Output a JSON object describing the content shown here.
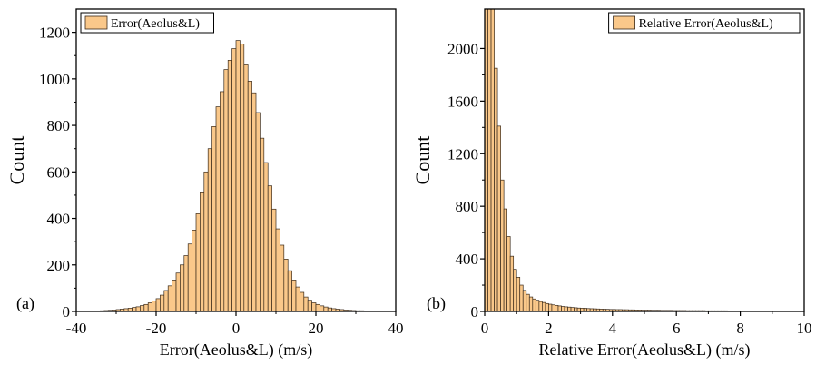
{
  "bar_fill": "#FAC88A",
  "bar_stroke": "#3a2a1a",
  "chart_data": [
    {
      "type": "bar",
      "panel_tag": "(a)",
      "xlabel": "Error(Aeolus&L) (m/s)",
      "ylabel": "Count",
      "xlim": [
        -40,
        40
      ],
      "ylim": [
        0,
        1300
      ],
      "xticks": [
        -40,
        -20,
        0,
        20,
        40
      ],
      "yticks": [
        0,
        200,
        400,
        600,
        800,
        1000,
        1200
      ],
      "grid": false,
      "legend": {
        "label": "Error(Aeolus&L)",
        "placement": "top-left"
      },
      "bin_width": 1,
      "series": [
        {
          "name": "Error(Aeolus&L)",
          "bin_starts": [
            -35,
            -34,
            -33,
            -32,
            -31,
            -30,
            -29,
            -28,
            -27,
            -26,
            -25,
            -24,
            -23,
            -22,
            -21,
            -20,
            -19,
            -18,
            -17,
            -16,
            -15,
            -14,
            -13,
            -12,
            -11,
            -10,
            -9,
            -8,
            -7,
            -6,
            -5,
            -4,
            -3,
            -2,
            -1,
            0,
            1,
            2,
            3,
            4,
            5,
            6,
            7,
            8,
            9,
            10,
            11,
            12,
            13,
            14,
            15,
            16,
            17,
            18,
            19,
            20,
            21,
            22,
            23,
            24,
            25,
            26,
            27,
            28,
            29,
            30,
            31,
            32,
            33,
            34,
            35
          ],
          "values": [
            2,
            3,
            4,
            5,
            6,
            8,
            10,
            12,
            14,
            17,
            20,
            25,
            30,
            37,
            45,
            55,
            70,
            90,
            110,
            135,
            165,
            200,
            240,
            290,
            350,
            420,
            510,
            600,
            700,
            795,
            880,
            945,
            1040,
            1080,
            1130,
            1165,
            1150,
            1060,
            990,
            940,
            855,
            745,
            640,
            540,
            440,
            355,
            285,
            225,
            175,
            135,
            105,
            82,
            62,
            48,
            37,
            30,
            24,
            19,
            15,
            12,
            10,
            8,
            6,
            5,
            4,
            3,
            3,
            2,
            2,
            1,
            1
          ]
        }
      ]
    },
    {
      "type": "bar",
      "panel_tag": "(b)",
      "xlabel": "Relative Error(Aeolus&L) (m/s)",
      "ylabel": "Count",
      "xlim": [
        0,
        10
      ],
      "ylim": [
        0,
        2300
      ],
      "xticks": [
        0,
        2,
        4,
        6,
        8,
        10
      ],
      "yticks": [
        0,
        400,
        800,
        1200,
        1600,
        2000
      ],
      "grid": false,
      "legend": {
        "label": "Relative Error(Aeolus&L)",
        "placement": "top-right"
      },
      "bin_width": 0.1,
      "series": [
        {
          "name": "Relative Error(Aeolus&L)",
          "bin_starts": [
            0,
            0.1,
            0.2,
            0.3,
            0.4,
            0.5,
            0.6,
            0.7,
            0.8,
            0.9,
            1.0,
            1.1,
            1.2,
            1.3,
            1.4,
            1.5,
            1.6,
            1.7,
            1.8,
            1.9,
            2.0,
            2.1,
            2.2,
            2.3,
            2.4,
            2.5,
            2.6,
            2.7,
            2.8,
            2.9,
            3.0,
            3.1,
            3.2,
            3.3,
            3.4,
            3.5,
            3.6,
            3.7,
            3.8,
            3.9,
            4.0,
            4.1,
            4.2,
            4.3,
            4.4,
            4.5,
            4.6,
            4.7,
            4.8,
            4.9,
            5.0,
            5.1,
            5.2,
            5.3,
            5.4,
            5.5,
            5.6,
            5.7,
            5.8,
            5.9,
            6.0,
            6.1,
            6.2,
            6.3,
            6.4,
            6.5,
            6.6,
            6.7,
            6.8,
            6.9,
            7.0,
            7.1,
            7.2,
            7.3,
            7.4,
            7.5,
            7.6,
            7.7,
            7.8,
            7.9,
            8.0,
            8.1,
            8.2,
            8.3,
            8.4,
            8.5,
            8.6,
            8.7,
            8.8,
            8.9,
            9.0,
            9.1,
            9.2,
            9.3,
            9.4,
            9.5,
            9.6,
            9.7,
            9.8,
            9.9
          ],
          "values": [
            2300,
            2300,
            2300,
            1850,
            1410,
            1000,
            780,
            570,
            420,
            320,
            260,
            200,
            160,
            130,
            110,
            95,
            85,
            75,
            68,
            60,
            55,
            50,
            46,
            42,
            38,
            35,
            33,
            30,
            28,
            26,
            25,
            24,
            22,
            21,
            20,
            19,
            18,
            17,
            16,
            15,
            15,
            14,
            14,
            13,
            13,
            12,
            12,
            11,
            11,
            10,
            10,
            10,
            9,
            9,
            9,
            8,
            8,
            8,
            8,
            7,
            7,
            7,
            7,
            6,
            6,
            6,
            6,
            6,
            6,
            5,
            5,
            5,
            5,
            5,
            5,
            5,
            4,
            4,
            4,
            4,
            4,
            4,
            4,
            4,
            4,
            4,
            3,
            3,
            3,
            3,
            3,
            3,
            3,
            3,
            3,
            3,
            3,
            3,
            3,
            3
          ]
        }
      ]
    }
  ]
}
